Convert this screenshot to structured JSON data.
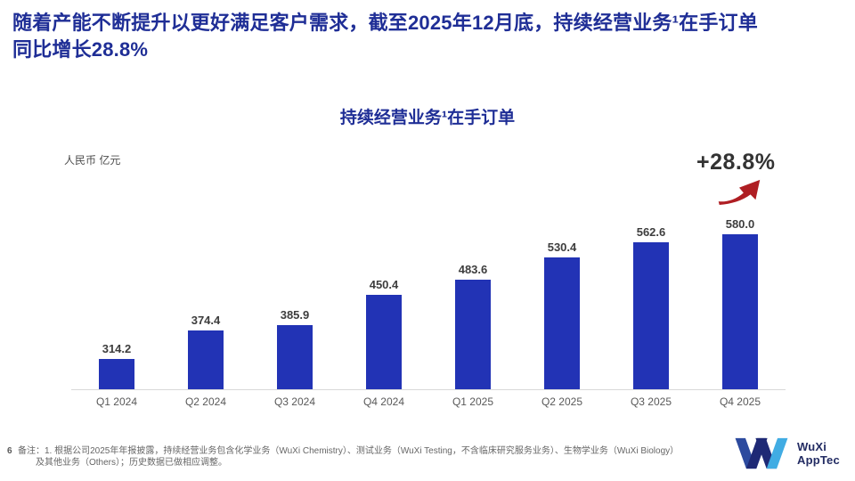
{
  "colors": {
    "title-navy": "#1F2E96",
    "growth-dark": "#333333",
    "arrow-red": "#AF1E23",
    "axis-gray": "#D9D9D9",
    "label-gray": "#595959",
    "value-gray": "#3D3D3D",
    "footnote-gray": "#666666",
    "logo-navy": "#232C63",
    "logo-blue": "#2C4A9E",
    "logo-dark": "#1E2975",
    "logo-lightblue": "#41ACE3"
  },
  "slide": {
    "title_line1": "随着产能不断提升以更好满足客户需求，截至2025年12月底，持续经营业务¹在手订单",
    "title_line2": "同比增长28.8%",
    "page_number": "6",
    "footnote_line1": "备注：1. 根据公司2025年年报披露，持续经营业务包含化学业务（WuXi Chemistry）、测试业务（WuXi Testing，不含临床研究服务业务）、生物学业务（WuXi Biology）",
    "footnote_line2": "及其他业务（Others）；历史数据已做相应调整。",
    "logo": {
      "line1": "WuXi",
      "line2": "AppTec"
    }
  },
  "chart_data": {
    "type": "bar",
    "title": "持续经营业务¹在手订单",
    "unit_label": "人民币 亿元",
    "categories": [
      "Q1 2024",
      "Q2 2024",
      "Q3 2024",
      "Q4 2024",
      "Q1 2025",
      "Q2 2025",
      "Q3 2025",
      "Q4 2025"
    ],
    "values": [
      314.2,
      374.4,
      385.9,
      450.4,
      483.6,
      530.4,
      562.6,
      580.0
    ],
    "value_decimals": 1,
    "growth_label": "+28.8%",
    "xlabel": "",
    "ylabel": "人民币 亿元",
    "ylim": [
      250,
      580
    ],
    "grid": false,
    "legend": false,
    "bar_color": "#2233B5"
  }
}
